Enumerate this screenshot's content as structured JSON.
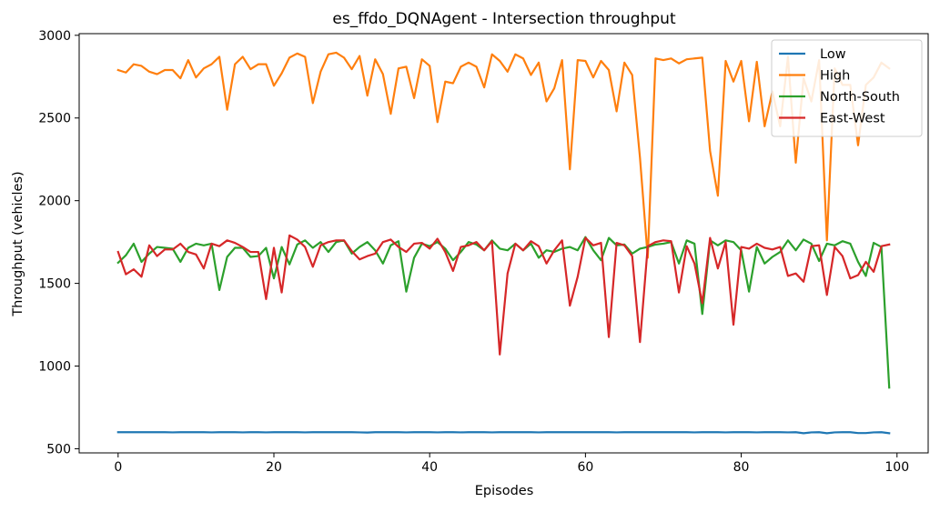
{
  "chart_data": {
    "type": "line",
    "title": "es_ffdo_DQNAgent - Intersection throughput",
    "xlabel": "Episodes",
    "ylabel": "Throughput (vehicles)",
    "xlim": [
      -5,
      104
    ],
    "ylim": [
      475,
      3010
    ],
    "xticks": [
      0,
      20,
      40,
      60,
      80,
      100
    ],
    "yticks": [
      500,
      1000,
      1500,
      2000,
      2500,
      3000
    ],
    "grid": false,
    "legend": "top-right",
    "x": [
      0,
      1,
      2,
      3,
      4,
      5,
      6,
      7,
      8,
      9,
      10,
      11,
      12,
      13,
      14,
      15,
      16,
      17,
      18,
      19,
      20,
      21,
      22,
      23,
      24,
      25,
      26,
      27,
      28,
      29,
      30,
      31,
      32,
      33,
      34,
      35,
      36,
      37,
      38,
      39,
      40,
      41,
      42,
      43,
      44,
      45,
      46,
      47,
      48,
      49,
      50,
      51,
      52,
      53,
      54,
      55,
      56,
      57,
      58,
      59,
      60,
      61,
      62,
      63,
      64,
      65,
      66,
      67,
      68,
      69,
      70,
      71,
      72,
      73,
      74,
      75,
      76,
      77,
      78,
      79,
      80,
      81,
      82,
      83,
      84,
      85,
      86,
      87,
      88,
      89,
      90,
      91,
      92,
      93,
      94,
      95,
      96,
      97,
      98,
      99
    ],
    "series": [
      {
        "name": "Low",
        "color": "#1f77b4",
        "values": [
          600,
          600,
          600,
          600,
          600,
          600,
          600,
          599,
          600,
          600,
          600,
          600,
          599,
          600,
          600,
          600,
          599,
          600,
          600,
          599,
          600,
          600,
          600,
          600,
          599,
          600,
          600,
          600,
          600,
          600,
          600,
          599,
          598,
          600,
          600,
          600,
          600,
          599,
          600,
          600,
          600,
          599,
          600,
          600,
          599,
          600,
          600,
          600,
          599,
          600,
          600,
          600,
          600,
          600,
          599,
          600,
          600,
          600,
          600,
          600,
          600,
          600,
          600,
          600,
          599,
          600,
          600,
          600,
          600,
          600,
          600,
          600,
          600,
          600,
          599,
          600,
          600,
          600,
          599,
          600,
          600,
          600,
          599,
          600,
          600,
          600,
          599,
          600,
          594,
          599,
          600,
          594,
          599,
          600,
          600,
          595,
          595,
          599,
          600,
          594
        ]
      },
      {
        "name": "High",
        "color": "#ff7f0e",
        "values": [
          2790,
          2775,
          2825,
          2815,
          2780,
          2765,
          2790,
          2790,
          2740,
          2850,
          2745,
          2800,
          2825,
          2870,
          2550,
          2825,
          2870,
          2795,
          2825,
          2825,
          2695,
          2770,
          2865,
          2890,
          2870,
          2590,
          2780,
          2885,
          2895,
          2865,
          2795,
          2875,
          2635,
          2855,
          2765,
          2525,
          2800,
          2810,
          2620,
          2855,
          2815,
          2475,
          2720,
          2710,
          2810,
          2835,
          2810,
          2685,
          2885,
          2845,
          2780,
          2885,
          2860,
          2760,
          2835,
          2600,
          2680,
          2850,
          2190,
          2850,
          2845,
          2745,
          2845,
          2790,
          2540,
          2835,
          2760,
          2260,
          1655,
          2860,
          2850,
          2860,
          2830,
          2855,
          2860,
          2865,
          2300,
          2030,
          2845,
          2720,
          2845,
          2480,
          2840,
          2450,
          2660,
          2450,
          2870,
          2230,
          2740,
          2600,
          2850,
          1760,
          2800,
          2700,
          2700,
          2335,
          2700,
          2745,
          2835,
          2800
        ]
      },
      {
        "name": "North-South",
        "color": "#2ca02c",
        "values": [
          1625,
          1670,
          1740,
          1630,
          1680,
          1720,
          1715,
          1710,
          1630,
          1715,
          1740,
          1730,
          1740,
          1460,
          1660,
          1715,
          1715,
          1660,
          1665,
          1715,
          1530,
          1720,
          1615,
          1735,
          1760,
          1715,
          1750,
          1690,
          1750,
          1760,
          1680,
          1720,
          1750,
          1700,
          1620,
          1730,
          1755,
          1450,
          1655,
          1740,
          1725,
          1750,
          1710,
          1640,
          1690,
          1750,
          1735,
          1700,
          1760,
          1710,
          1700,
          1740,
          1700,
          1740,
          1655,
          1700,
          1690,
          1710,
          1720,
          1700,
          1780,
          1700,
          1640,
          1775,
          1730,
          1735,
          1680,
          1710,
          1720,
          1735,
          1740,
          1750,
          1620,
          1760,
          1740,
          1315,
          1760,
          1730,
          1760,
          1750,
          1700,
          1450,
          1720,
          1620,
          1660,
          1690,
          1760,
          1700,
          1765,
          1740,
          1635,
          1740,
          1730,
          1755,
          1740,
          1630,
          1545,
          1745,
          1720,
          870
        ]
      },
      {
        "name": "East-West",
        "color": "#d62728",
        "values": [
          1690,
          1555,
          1585,
          1540,
          1730,
          1665,
          1705,
          1705,
          1740,
          1690,
          1675,
          1590,
          1740,
          1725,
          1760,
          1745,
          1720,
          1690,
          1690,
          1405,
          1715,
          1445,
          1790,
          1765,
          1720,
          1600,
          1730,
          1750,
          1760,
          1760,
          1695,
          1645,
          1665,
          1680,
          1750,
          1765,
          1720,
          1690,
          1740,
          1745,
          1710,
          1770,
          1690,
          1575,
          1720,
          1730,
          1750,
          1700,
          1755,
          1070,
          1560,
          1740,
          1700,
          1755,
          1725,
          1620,
          1700,
          1760,
          1365,
          1540,
          1775,
          1730,
          1745,
          1175,
          1745,
          1730,
          1665,
          1145,
          1725,
          1750,
          1760,
          1755,
          1445,
          1725,
          1620,
          1380,
          1775,
          1590,
          1750,
          1250,
          1720,
          1710,
          1740,
          1715,
          1705,
          1720,
          1545,
          1560,
          1510,
          1725,
          1730,
          1430,
          1720,
          1665,
          1530,
          1550,
          1630,
          1570,
          1725,
          1735
        ]
      }
    ]
  }
}
